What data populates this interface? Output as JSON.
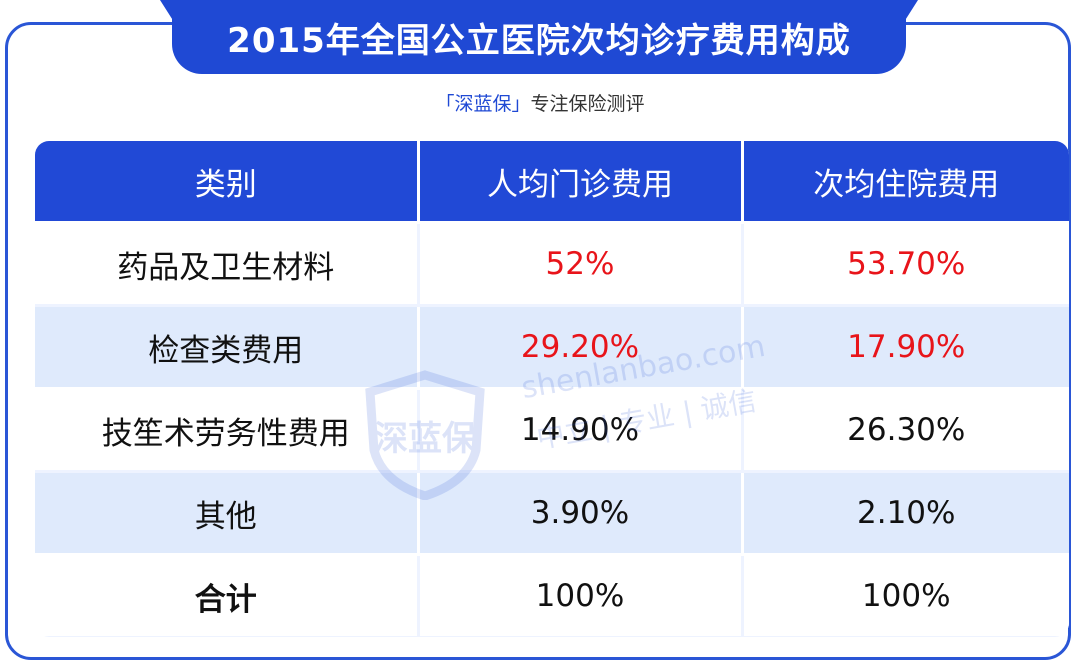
{
  "title": "2015年全国公立医院次均诊疗费用构成",
  "subtitle": {
    "brand": "「深蓝保」",
    "rest": "专注保险测评"
  },
  "table": {
    "headers": [
      "类别",
      "人均门诊费用",
      "次均住院费用"
    ],
    "rows": [
      {
        "category": "药品及卫生材料",
        "outpatient": "52%",
        "inpatient": "53.70%"
      },
      {
        "category": "检查类费用",
        "outpatient": "29.20%",
        "inpatient": "17.90%"
      },
      {
        "category": "技笙术劳务性费用",
        "outpatient": "14.90%",
        "inpatient": "26.30%"
      },
      {
        "category": "其他",
        "outpatient": "3.90%",
        "inpatient": "2.10%"
      },
      {
        "category": "合计",
        "outpatient": "100%",
        "inpatient": "100%"
      }
    ]
  },
  "watermark": {
    "logo_text": "深蓝保",
    "url": "shenlanbao.com",
    "slogan": "中立 | 专业 | 诚信"
  },
  "colors": {
    "accent_blue": "#2149d6",
    "stripe_blue": "#dfeafc",
    "highlight_red": "#e8141a"
  }
}
